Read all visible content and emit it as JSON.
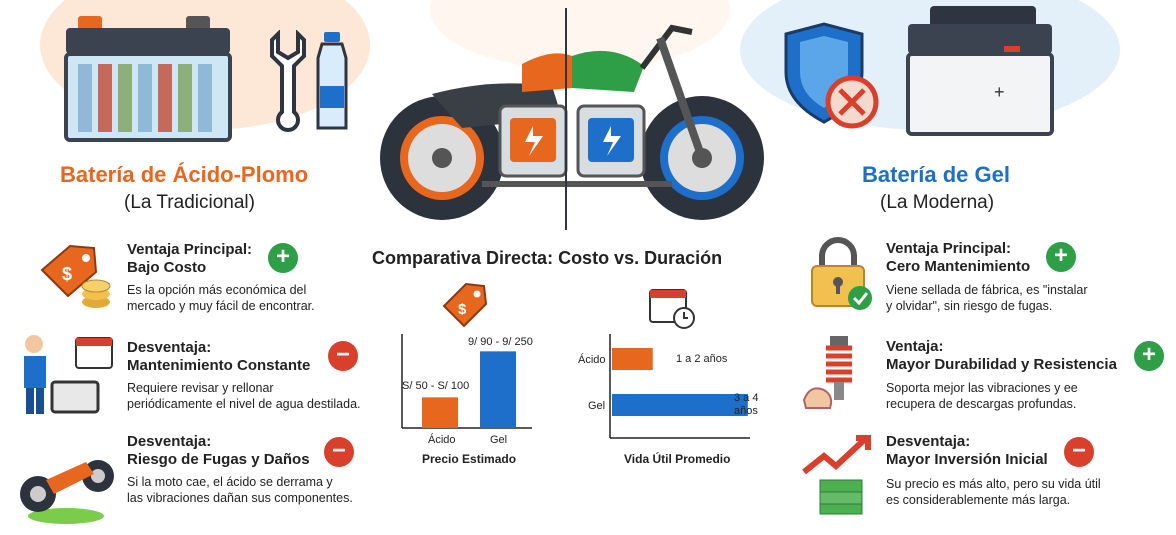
{
  "left": {
    "title": "Batería de Ácido-Plomo",
    "subtitle": "(La Tradicional)",
    "items": [
      {
        "head1": "Ventaja Principal:",
        "head2": "Bajo Costo",
        "desc1": "Es la opción más económica del",
        "desc2": "mercado y muy fácil de encontrar.",
        "sign": "+"
      },
      {
        "head1": "Desventaja:",
        "head2": "Mantenimiento Constante",
        "desc1": "Requiere revisar y rellonar",
        "desc2": "periódicamente el nivel de agua destilada.",
        "sign": "−"
      },
      {
        "head1": "Desventaja:",
        "head2": "Riesgo de Fugas y Daños",
        "desc1": "Si la moto cae, el ácido se derrama y",
        "desc2": "las vibraciones dañan sus componentes.",
        "sign": "−"
      }
    ]
  },
  "right": {
    "title": "Batería de Gel",
    "subtitle": "(La Moderna)",
    "items": [
      {
        "head1": "Ventaja Principal:",
        "head2": "Cero Mantenimiento",
        "desc1": "Viene sellada de fábrica, es \"instalar",
        "desc2": "y olvidar\", sin riesgo de fugas.",
        "sign": "+"
      },
      {
        "head1": "Ventaja:",
        "head2": "Mayor Durabilidad y Resistencia",
        "desc1": "Soporta mejor las vibraciones y ee",
        "desc2": "recupera de descargas profundas.",
        "sign": "+"
      },
      {
        "head1": "Desventaja:",
        "head2": "Mayor Inversión Inicial",
        "desc1": "Su precio es más alto, pero su vida útil",
        "desc2": "es considerablemente más larga.",
        "sign": "−"
      }
    ]
  },
  "center": {
    "title": "Comparativa Directa: Costo vs. Duración"
  },
  "colors": {
    "orange": "#e8671e",
    "blue": "#1e6fc9",
    "green": "#2e9e47",
    "red": "#d9402b"
  },
  "chart_data": [
    {
      "type": "bar",
      "title": "Precio Estimado",
      "categories": [
        "Ácido",
        "Gel"
      ],
      "values": [
        100,
        250
      ],
      "data_labels": [
        "S/ 50 - S/ 100",
        "9/ 90 - 9/ 250"
      ],
      "colors": [
        "#e8671e",
        "#1e6fc9"
      ],
      "ylim": [
        0,
        300
      ]
    },
    {
      "type": "bar",
      "orientation": "horizontal",
      "title": "Vida Útil Promedio",
      "categories": [
        "Ácido",
        "Gel"
      ],
      "values": [
        2,
        4
      ],
      "data_labels": [
        "1 a 2 años",
        "3 a 4 años"
      ],
      "colors": [
        "#e8671e",
        "#1e6fc9"
      ],
      "xlim": [
        0,
        4.3
      ]
    }
  ]
}
